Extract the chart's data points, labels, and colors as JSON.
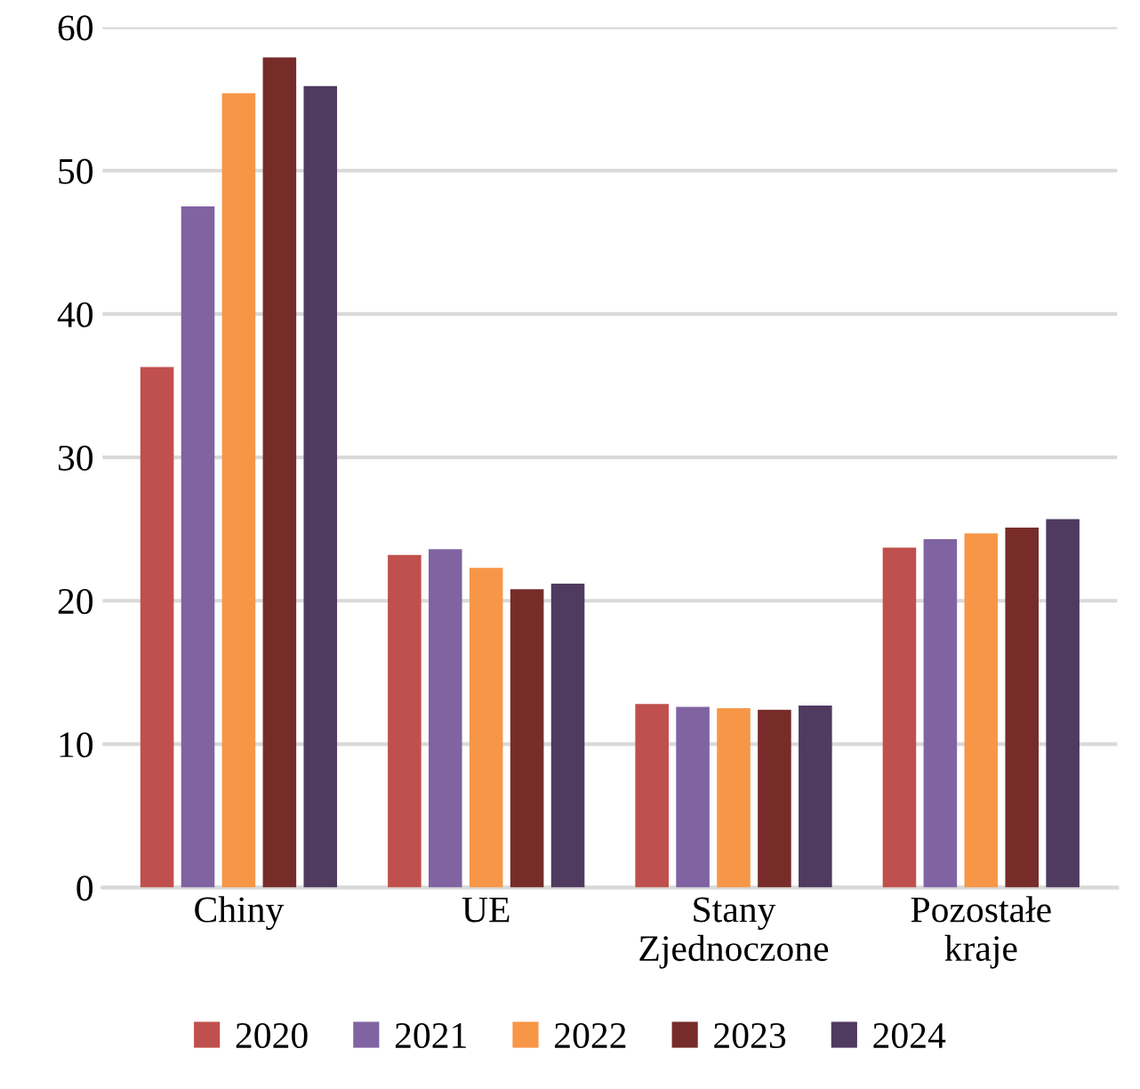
{
  "chart_data": {
    "type": "bar",
    "categories": [
      "Chiny",
      "UE",
      "Stany\nZjednoczone",
      "Pozostałe\nkraje"
    ],
    "series": [
      {
        "name": "2020",
        "color": "#c0504d",
        "values": [
          36.3,
          23.2,
          12.8,
          23.7
        ]
      },
      {
        "name": "2021",
        "color": "#8064a2",
        "values": [
          47.5,
          23.6,
          12.6,
          24.3
        ]
      },
      {
        "name": "2022",
        "color": "#f79646",
        "values": [
          55.4,
          22.3,
          12.5,
          24.7
        ]
      },
      {
        "name": "2023",
        "color": "#772c2a",
        "values": [
          57.9,
          20.8,
          12.4,
          25.1
        ]
      },
      {
        "name": "2024",
        "color": "#4f3a60",
        "values": [
          55.9,
          21.2,
          12.7,
          25.7
        ]
      }
    ],
    "ylim": [
      0,
      60
    ],
    "yticks": [
      0,
      10,
      20,
      30,
      40,
      50,
      60
    ],
    "grid": "y",
    "legend": "bottom"
  }
}
